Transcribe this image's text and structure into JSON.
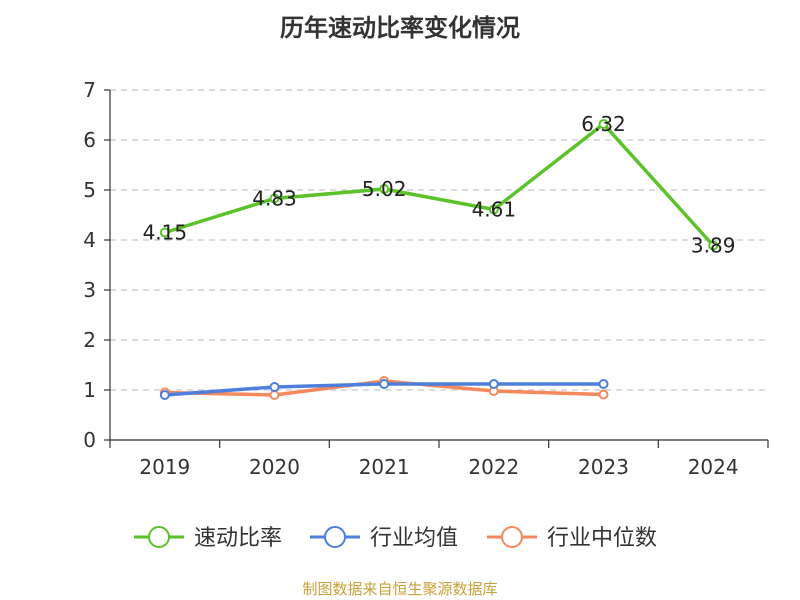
{
  "chart_data": {
    "type": "line",
    "title": "历年速动比率变化情况",
    "categories": [
      "2019",
      "2020",
      "2021",
      "2022",
      "2023",
      "2024"
    ],
    "ylim": [
      0,
      7
    ],
    "yticks": [
      "0",
      "1",
      "2",
      "3",
      "4",
      "5",
      "6",
      "7"
    ],
    "grid": true,
    "legend_position": "bottom",
    "series": [
      {
        "name": "速动比率",
        "color": "#5cc22a",
        "values": [
          4.15,
          4.83,
          5.02,
          4.61,
          6.32,
          3.89
        ],
        "labels": [
          "4.15",
          "4.83",
          "5.02",
          "4.61",
          "6.32",
          "3.89"
        ]
      },
      {
        "name": "行业均值",
        "color": "#4e7fdc",
        "values": [
          0.9,
          1.06,
          1.12,
          1.12,
          1.12,
          null
        ]
      },
      {
        "name": "行业中位数",
        "color": "#f5895d",
        "values": [
          0.95,
          0.9,
          1.18,
          0.98,
          0.91,
          null
        ]
      }
    ]
  },
  "source": "制图数据来自恒生聚源数据库"
}
